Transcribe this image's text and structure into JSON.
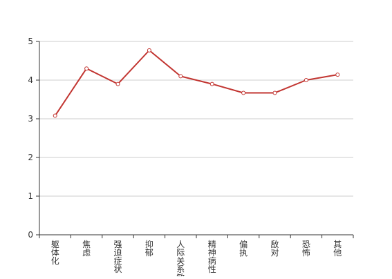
{
  "chart_data": {
    "type": "line",
    "categories": [
      "躯体化",
      "焦虑",
      "强迫症状",
      "抑郁",
      "人际关系敏感",
      "精神病性",
      "偏执",
      "敌对",
      "恐怖",
      "其他"
    ],
    "series": [
      {
        "values": [
          3.08,
          4.3,
          3.9,
          4.77,
          4.1,
          3.9,
          3.67,
          3.67,
          4.0,
          4.14
        ],
        "color": "#c23531"
      }
    ],
    "ylim": [
      0,
      5
    ],
    "yticks": [
      0,
      1,
      2,
      3,
      4,
      5
    ],
    "grid": true,
    "legend": "none"
  }
}
